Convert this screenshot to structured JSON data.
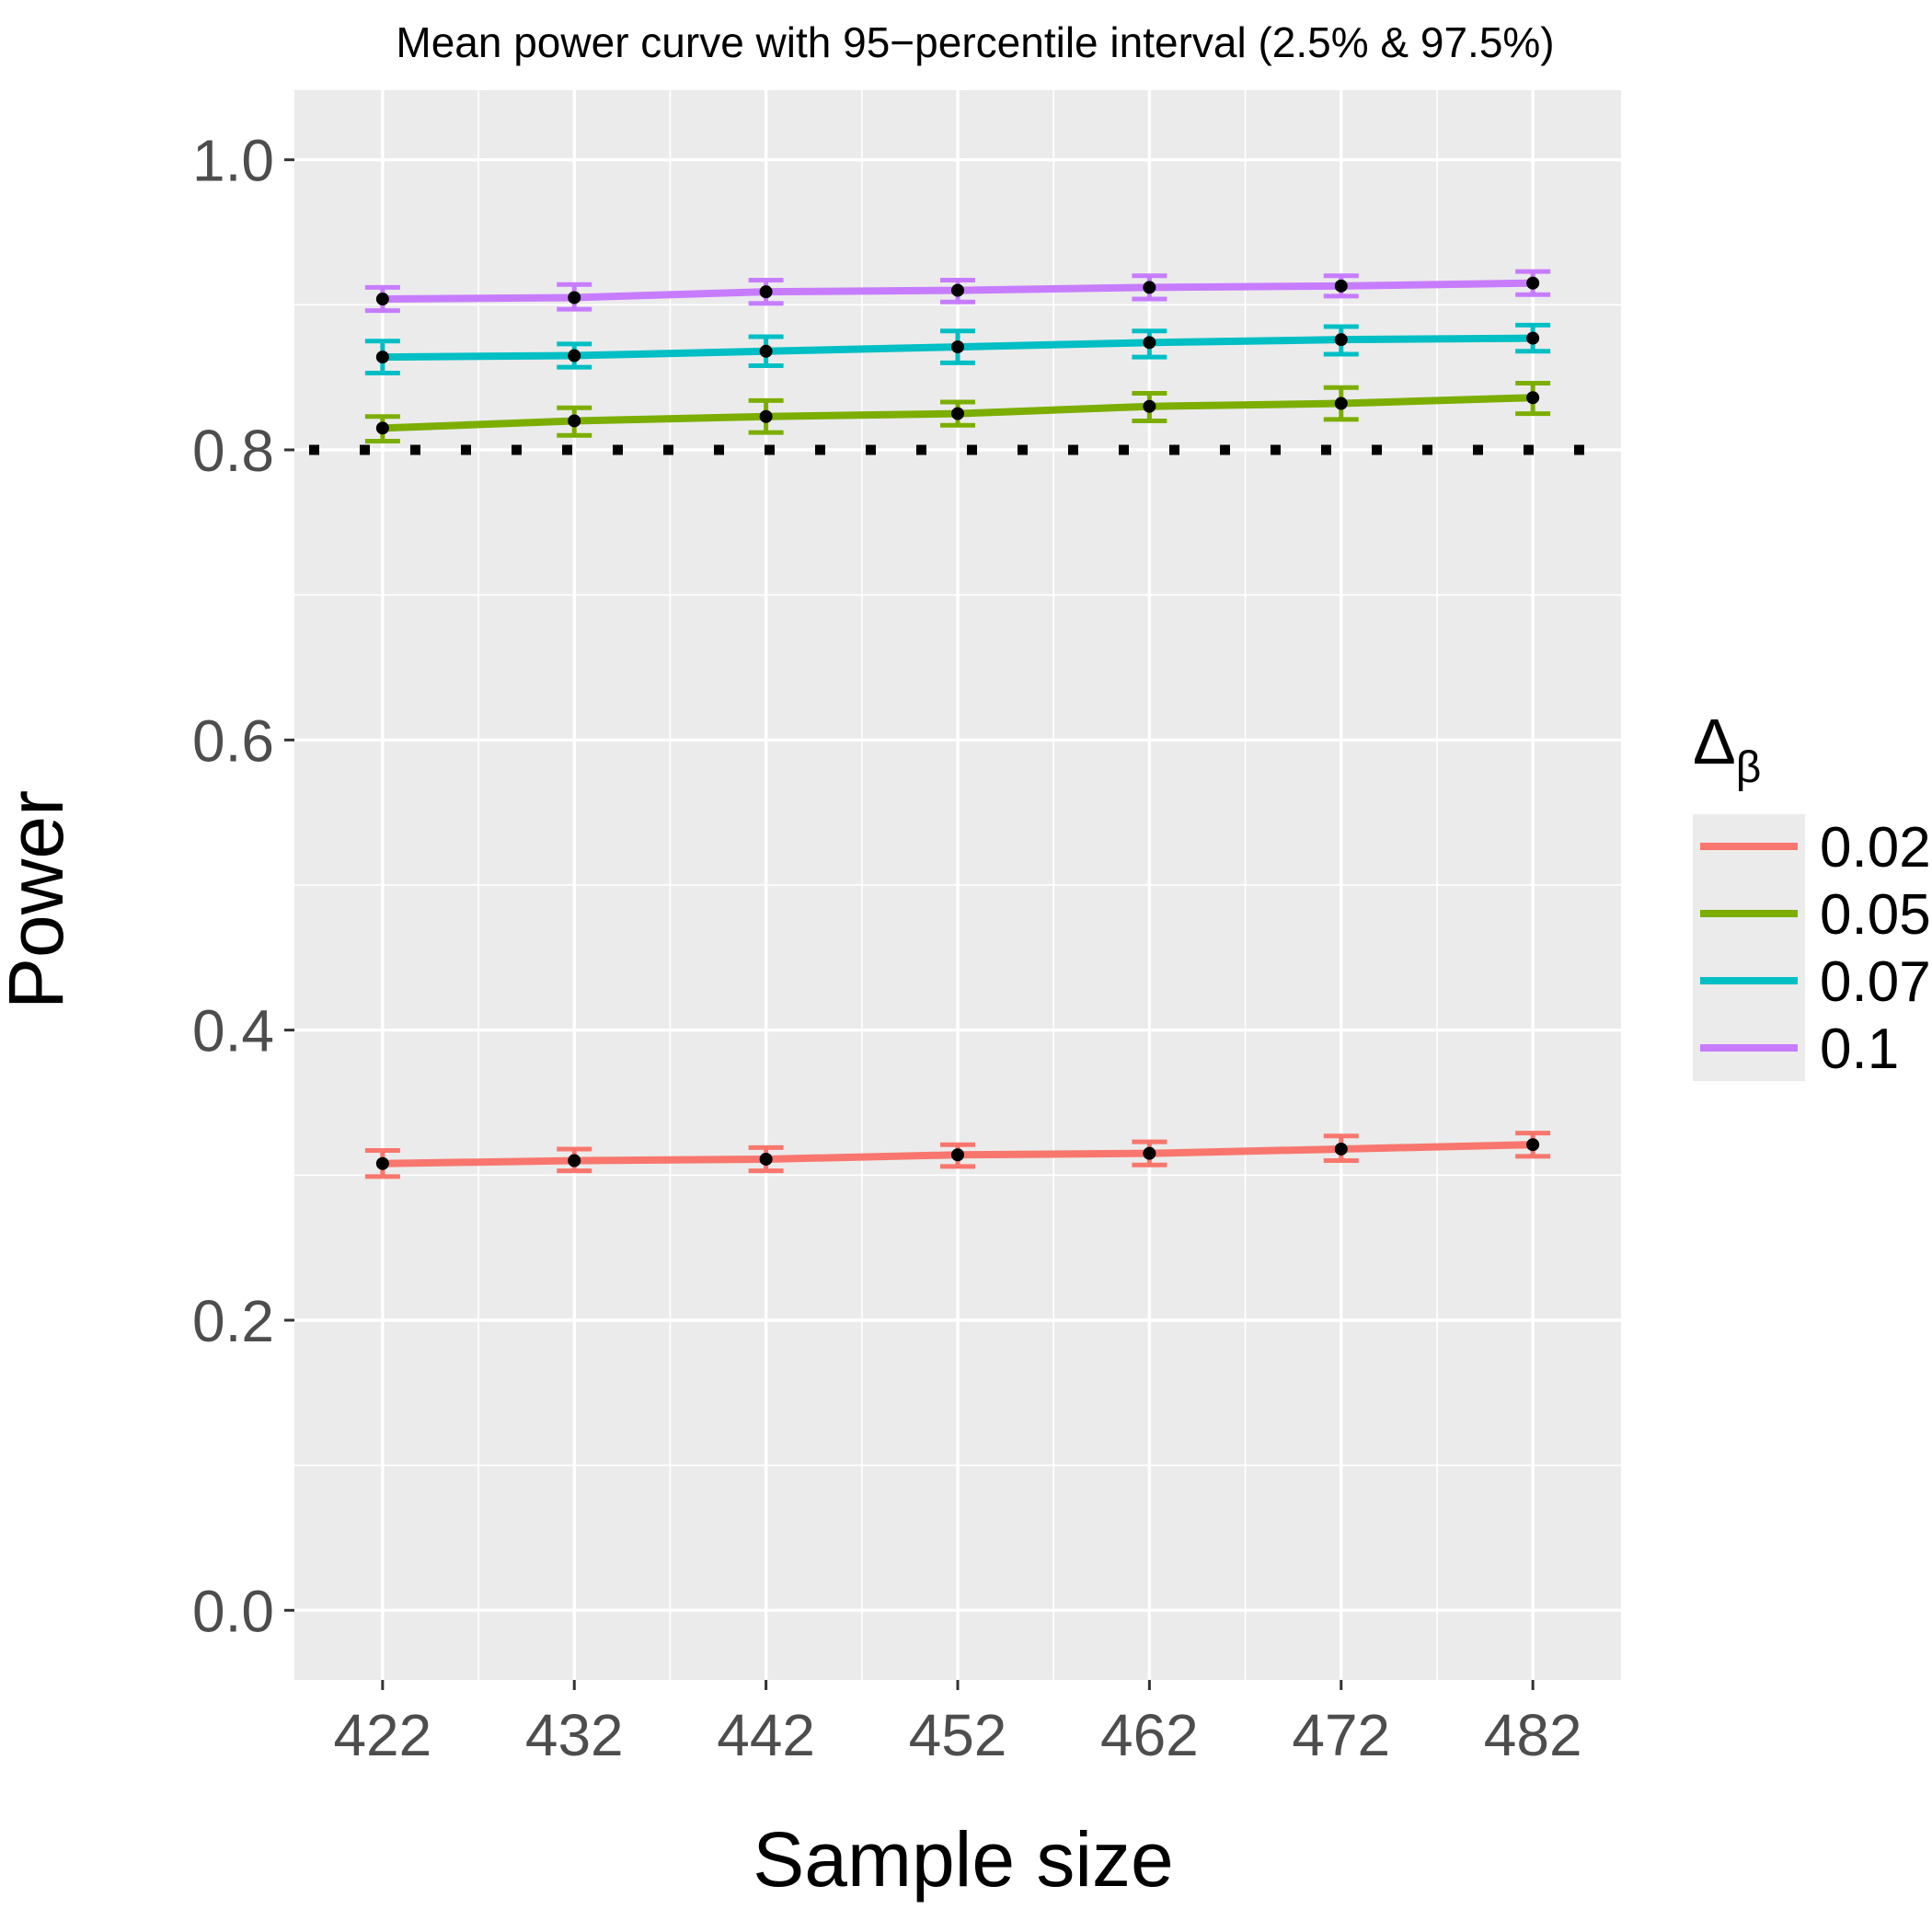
{
  "chart_data": {
    "type": "line",
    "title": "Mean power curve with 95−percentile interval (2.5% & 97.5%)",
    "xlabel": "Sample size",
    "ylabel": "Power",
    "x": [
      422,
      432,
      442,
      452,
      462,
      472,
      482
    ],
    "x_ticks": [
      "422",
      "432",
      "442",
      "452",
      "462",
      "472",
      "482"
    ],
    "y_ticks": [
      "0.0",
      "0.2",
      "0.4",
      "0.6",
      "0.8",
      "1.0"
    ],
    "xlim": [
      417.4,
      486.6
    ],
    "ylim": [
      -0.048,
      1.048
    ],
    "reference_line": {
      "y": 0.8,
      "style": "dotted",
      "color": "#000000"
    },
    "legend": {
      "title": "Δ",
      "title_subscript": "β",
      "position": "right"
    },
    "grid": true,
    "series": [
      {
        "name": "0.02",
        "color": "#F8766D",
        "values": [
          0.308,
          0.31,
          0.311,
          0.314,
          0.315,
          0.318,
          0.321
        ],
        "lower": [
          0.299,
          0.303,
          0.303,
          0.306,
          0.307,
          0.31,
          0.313
        ],
        "upper": [
          0.317,
          0.318,
          0.319,
          0.321,
          0.323,
          0.327,
          0.329
        ]
      },
      {
        "name": "0.05",
        "color": "#7CAE00",
        "values": [
          0.815,
          0.82,
          0.823,
          0.825,
          0.83,
          0.832,
          0.836
        ],
        "lower": [
          0.806,
          0.81,
          0.812,
          0.817,
          0.82,
          0.821,
          0.825
        ],
        "upper": [
          0.823,
          0.829,
          0.834,
          0.833,
          0.839,
          0.843,
          0.846
        ]
      },
      {
        "name": "0.07",
        "color": "#00BFC4",
        "values": [
          0.864,
          0.865,
          0.868,
          0.871,
          0.874,
          0.876,
          0.877
        ],
        "lower": [
          0.853,
          0.857,
          0.858,
          0.86,
          0.864,
          0.866,
          0.868
        ],
        "upper": [
          0.875,
          0.873,
          0.878,
          0.882,
          0.882,
          0.885,
          0.886
        ]
      },
      {
        "name": "0.1",
        "color": "#C77CFF",
        "values": [
          0.904,
          0.905,
          0.909,
          0.91,
          0.912,
          0.913,
          0.915
        ],
        "lower": [
          0.896,
          0.897,
          0.901,
          0.902,
          0.904,
          0.906,
          0.907
        ],
        "upper": [
          0.912,
          0.914,
          0.917,
          0.917,
          0.92,
          0.92,
          0.923
        ]
      }
    ]
  }
}
